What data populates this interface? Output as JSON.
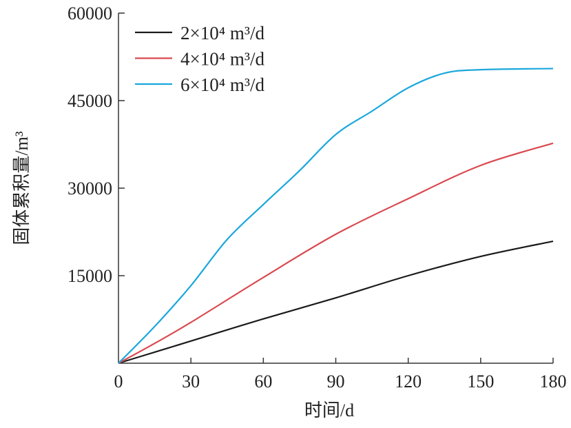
{
  "chart_data": {
    "type": "line",
    "title": "",
    "xlabel": "时间/d",
    "ylabel": "固体累积量/m³",
    "xlim": [
      0,
      180
    ],
    "ylim": [
      0,
      60000
    ],
    "xticks": [
      0,
      30,
      60,
      90,
      120,
      150,
      180
    ],
    "yticks": [
      15000,
      30000,
      45000,
      60000
    ],
    "xtick_labels": [
      "0",
      "30",
      "60",
      "90",
      "120",
      "150",
      "180"
    ],
    "ytick_labels": [
      "15000",
      "30000",
      "45000",
      "60000"
    ],
    "grid": false,
    "legend_position": "top-left",
    "series": [
      {
        "name": "2×10⁴ m³/d",
        "color": "#1a1a1a",
        "x": [
          0,
          15,
          30,
          60,
          90,
          120,
          150,
          180
        ],
        "y": [
          0,
          1900,
          3800,
          7600,
          11200,
          15000,
          18300,
          20900
        ]
      },
      {
        "name": "4×10⁴ m³/d",
        "color": "#d9494f",
        "x": [
          0,
          15,
          30,
          60,
          90,
          120,
          150,
          180
        ],
        "y": [
          0,
          3400,
          7000,
          14700,
          22100,
          28200,
          33900,
          37700
        ]
      },
      {
        "name": "6×10⁴ m³/d",
        "color": "#1aa7dc",
        "x": [
          0,
          15,
          30,
          45,
          60,
          75,
          90,
          105,
          120,
          135,
          150,
          180
        ],
        "y": [
          0,
          6300,
          13300,
          21200,
          27200,
          33000,
          39200,
          43200,
          47200,
          49700,
          50300,
          50500
        ]
      }
    ]
  }
}
